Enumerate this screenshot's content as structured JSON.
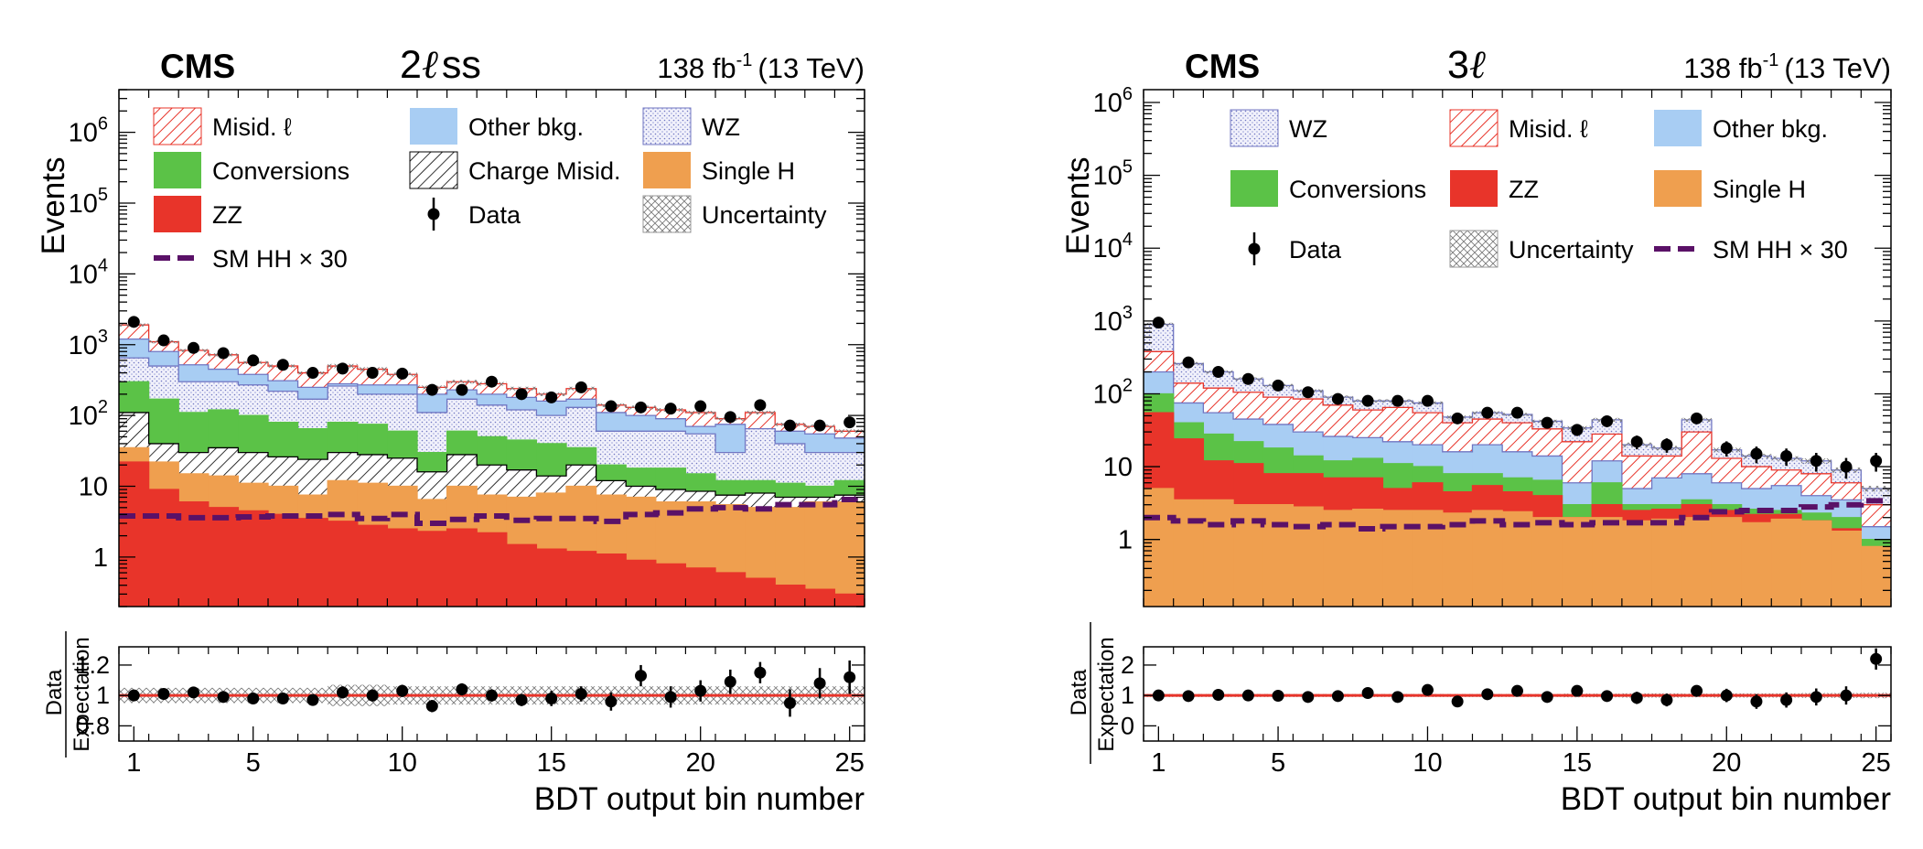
{
  "colors": {
    "misid": "#e8342a",
    "other": "#a8cdf3",
    "wz": "#7076c2",
    "wz_fill": "#f1f1fb",
    "conv": "#5bc247",
    "chargemisid": "#000000",
    "singleh": "#ef9f4f",
    "zz": "#e8342a",
    "hh": "#5a1167",
    "unc": "#888888",
    "ratio_line": "#e8342a"
  },
  "chart_data": [
    {
      "type": "bar",
      "stacked": true,
      "log_scale": true,
      "experiment": "CMS",
      "channel_prefix": "2",
      "channel_ell": "ℓ",
      "channel_suffix": "ss",
      "lumi_text": "138 fb",
      "lumi_sup": "-1",
      "energy_text": "(13 TeV)",
      "ylabel": "Events",
      "xlabel": "BDT output bin number",
      "ratio_ylabel_num": "Data",
      "ratio_ylabel_den": "Expectation",
      "ylim": [
        0.2,
        4000000
      ],
      "xlim": [
        0.5,
        25.5
      ],
      "ratio_ylim": [
        0.7,
        1.32
      ],
      "ratio_ticks": [
        "0.8",
        "1",
        "1.2"
      ],
      "x_ticks": [
        "1",
        "5",
        "10",
        "15",
        "20",
        "25"
      ],
      "y_ticks": [
        {
          "label": "1",
          "exp": ""
        },
        {
          "label": "10",
          "exp": ""
        },
        {
          "label": "10",
          "exp": "2"
        },
        {
          "label": "10",
          "exp": "3"
        },
        {
          "label": "10",
          "exp": "4"
        },
        {
          "label": "10",
          "exp": "5"
        },
        {
          "label": "10",
          "exp": "6"
        }
      ],
      "legend": [
        {
          "label": "Misid. ℓ",
          "key": "misid",
          "style": "hatch-red"
        },
        {
          "label": "Other bkg.",
          "key": "other",
          "style": "fill"
        },
        {
          "label": "WZ",
          "key": "wz",
          "style": "dots-blue"
        },
        {
          "label": "Conversions",
          "key": "conv",
          "style": "fill"
        },
        {
          "label": "Charge Misid.",
          "key": "chargemisid",
          "style": "hatch-black"
        },
        {
          "label": "Single H",
          "key": "singleh",
          "style": "fill"
        },
        {
          "label": "ZZ",
          "key": "zz",
          "style": "fill"
        },
        {
          "label": "Data",
          "key": "data",
          "style": "marker"
        },
        {
          "label": "Uncertainty",
          "key": "unc",
          "style": "crosshatch"
        },
        {
          "label": "SM HH × 30",
          "key": "hh",
          "style": "dash"
        }
      ],
      "stack_order": [
        "zz",
        "singleh",
        "chargemisid",
        "conv",
        "wz",
        "other",
        "misid"
      ],
      "bins": 25,
      "cumulative": {
        "zz": [
          22,
          9,
          6,
          5,
          4.5,
          4,
          3.5,
          3.2,
          2.8,
          2.5,
          2.3,
          2.5,
          2.2,
          1.5,
          1.3,
          1.2,
          1.1,
          0.9,
          0.8,
          0.7,
          0.6,
          0.5,
          0.4,
          0.35,
          0.3
        ],
        "singleh": [
          35,
          22,
          15,
          14,
          11,
          10,
          7.5,
          12,
          11,
          10,
          6.5,
          10,
          7.5,
          7,
          8,
          10,
          7.5,
          7,
          6,
          6,
          5.5,
          5,
          5,
          6,
          6
        ],
        "chargemisid": [
          110,
          40,
          30,
          35,
          30,
          26,
          24,
          30,
          28,
          25,
          16,
          28,
          20,
          17,
          14,
          20,
          12,
          10,
          9,
          8.5,
          7.5,
          8,
          7,
          7,
          7.5
        ],
        "conv": [
          300,
          170,
          110,
          120,
          100,
          80,
          65,
          80,
          75,
          60,
          30,
          60,
          50,
          45,
          40,
          35,
          20,
          18,
          18,
          15,
          12,
          12,
          11,
          10,
          12
        ],
        "wz": [
          650,
          500,
          300,
          300,
          270,
          220,
          170,
          260,
          200,
          200,
          110,
          170,
          140,
          120,
          100,
          130,
          60,
          60,
          60,
          55,
          30,
          65,
          40,
          30,
          30
        ],
        "other": [
          1200,
          800,
          520,
          450,
          380,
          310,
          250,
          280,
          270,
          270,
          200,
          230,
          200,
          180,
          160,
          170,
          110,
          100,
          90,
          70,
          75,
          65,
          60,
          55,
          48
        ],
        "misid": [
          1900,
          1100,
          830,
          720,
          560,
          500,
          400,
          500,
          450,
          380,
          250,
          300,
          280,
          240,
          200,
          240,
          140,
          130,
          120,
          110,
          90,
          110,
          75,
          70,
          60
        ]
      },
      "hh": [
        3.8,
        3.8,
        3.6,
        3.6,
        3.7,
        3.8,
        3.8,
        4.0,
        3.5,
        4.0,
        3.0,
        3.4,
        3.8,
        3.3,
        3.5,
        3.5,
        3.2,
        4.0,
        4.2,
        4.8,
        5.0,
        4.8,
        5.5,
        5.5,
        6.5
      ],
      "data": [
        2100,
        1150,
        900,
        760,
        600,
        520,
        400,
        460,
        400,
        390,
        230,
        230,
        300,
        200,
        180,
        250,
        135,
        130,
        125,
        135,
        95,
        140,
        72,
        72,
        80
      ],
      "unc_rel": [
        0.05,
        0.05,
        0.05,
        0.05,
        0.05,
        0.05,
        0.05,
        0.07,
        0.07,
        0.06,
        0.06,
        0.06,
        0.06,
        0.06,
        0.06,
        0.06,
        0.06,
        0.06,
        0.06,
        0.06,
        0.06,
        0.06,
        0.06,
        0.06,
        0.06
      ],
      "ratio": [
        1.0,
        1.01,
        1.02,
        0.99,
        0.98,
        0.98,
        0.97,
        1.02,
        1.0,
        1.03,
        0.93,
        1.04,
        1.0,
        0.97,
        0.98,
        1.01,
        0.96,
        1.13,
        0.99,
        1.03,
        1.09,
        1.15,
        0.95,
        1.08,
        1.12
      ],
      "ratio_err": [
        0.02,
        0.02,
        0.02,
        0.02,
        0.02,
        0.03,
        0.03,
        0.04,
        0.04,
        0.04,
        0.04,
        0.04,
        0.04,
        0.04,
        0.05,
        0.05,
        0.06,
        0.07,
        0.07,
        0.07,
        0.08,
        0.07,
        0.09,
        0.1,
        0.11
      ]
    },
    {
      "type": "bar",
      "stacked": true,
      "log_scale": true,
      "experiment": "CMS",
      "channel_prefix": "3",
      "channel_ell": "ℓ",
      "channel_suffix": "",
      "lumi_text": "138 fb",
      "lumi_sup": "-1",
      "energy_text": "(13 TeV)",
      "ylabel": "Events",
      "xlabel": "BDT output bin number",
      "ratio_ylabel_num": "Data",
      "ratio_ylabel_den": "Expectation",
      "ylim": [
        0.12,
        1500000
      ],
      "xlim": [
        0.5,
        25.5
      ],
      "ratio_ylim": [
        -0.5,
        2.6
      ],
      "ratio_ticks": [
        "0",
        "1",
        "2"
      ],
      "x_ticks": [
        "1",
        "5",
        "10",
        "15",
        "20",
        "25"
      ],
      "y_ticks": [
        {
          "label": "1",
          "exp": ""
        },
        {
          "label": "10",
          "exp": ""
        },
        {
          "label": "10",
          "exp": "2"
        },
        {
          "label": "10",
          "exp": "3"
        },
        {
          "label": "10",
          "exp": "4"
        },
        {
          "label": "10",
          "exp": "5"
        },
        {
          "label": "10",
          "exp": "6"
        }
      ],
      "legend": [
        {
          "label": "WZ",
          "key": "wz",
          "style": "dots-blue"
        },
        {
          "label": "Misid. ℓ",
          "key": "misid",
          "style": "hatch-red"
        },
        {
          "label": "Other bkg.",
          "key": "other",
          "style": "fill"
        },
        {
          "label": "Conversions",
          "key": "conv",
          "style": "fill"
        },
        {
          "label": "ZZ",
          "key": "zz",
          "style": "fill"
        },
        {
          "label": "Single H",
          "key": "singleh",
          "style": "fill"
        },
        {
          "label": "Data",
          "key": "data",
          "style": "marker"
        },
        {
          "label": "Uncertainty",
          "key": "unc",
          "style": "crosshatch"
        },
        {
          "label": "SM HH × 30",
          "key": "hh",
          "style": "dash"
        }
      ],
      "stack_order": [
        "singleh",
        "zz",
        "conv",
        "other",
        "misid",
        "wz"
      ],
      "bins": 25,
      "cumulative": {
        "singleh": [
          5,
          3.5,
          3.5,
          3,
          3,
          2.8,
          2.5,
          2.6,
          2.5,
          2.5,
          2.3,
          2.5,
          2.4,
          2.0,
          2.0,
          2.0,
          1.8,
          1.9,
          2.0,
          2.0,
          1.7,
          1.9,
          1.8,
          1.3,
          0.8
        ],
        "zz": [
          55,
          24,
          12,
          11,
          8,
          8,
          7,
          7,
          5,
          6,
          4.5,
          5.5,
          4.5,
          4,
          2,
          3,
          2.5,
          2.6,
          3,
          2.5,
          2.2,
          2.2,
          1.8,
          1.4,
          0.7
        ],
        "conv": [
          100,
          40,
          28,
          22,
          18,
          14,
          12,
          13,
          11,
          10,
          8,
          8,
          7,
          6.5,
          3,
          6,
          3,
          3,
          3.5,
          3,
          2.6,
          2.5,
          2.3,
          2.0,
          1.0
        ],
        "other": [
          200,
          75,
          55,
          45,
          38,
          30,
          26,
          25,
          22,
          20,
          16,
          20,
          16,
          14,
          6,
          12,
          5,
          7,
          8,
          6,
          5,
          5.5,
          4,
          3.5,
          1.5
        ],
        "misid": [
          380,
          140,
          120,
          105,
          90,
          85,
          70,
          60,
          65,
          55,
          40,
          45,
          40,
          33,
          22,
          28,
          14,
          14,
          30,
          13,
          10,
          9,
          8,
          6,
          3
        ],
        "wz": [
          900,
          260,
          200,
          160,
          130,
          110,
          90,
          80,
          80,
          75,
          48,
          55,
          52,
          42,
          34,
          44,
          20,
          18,
          44,
          17,
          14,
          13,
          12,
          9,
          5
        ]
      },
      "hh": [
        2.0,
        1.8,
        1.6,
        1.8,
        1.6,
        1.5,
        1.6,
        1.4,
        1.5,
        1.5,
        1.6,
        1.8,
        1.6,
        1.7,
        1.6,
        1.7,
        1.7,
        1.7,
        2.0,
        2.4,
        2.5,
        2.5,
        2.8,
        3.0,
        3.4
      ],
      "data": [
        950,
        270,
        200,
        160,
        130,
        105,
        85,
        80,
        80,
        80,
        46,
        55,
        55,
        40,
        32,
        42,
        22,
        20,
        46,
        18,
        15,
        14,
        12,
        10,
        12
      ],
      "unc_rel": [
        0.05,
        0.05,
        0.05,
        0.05,
        0.05,
        0.05,
        0.05,
        0.05,
        0.05,
        0.05,
        0.05,
        0.05,
        0.05,
        0.05,
        0.06,
        0.06,
        0.07,
        0.07,
        0.06,
        0.07,
        0.07,
        0.07,
        0.08,
        0.08,
        0.09
      ],
      "ratio": [
        1.0,
        0.98,
        1.02,
        1.0,
        0.99,
        0.95,
        0.98,
        1.08,
        0.95,
        1.18,
        0.8,
        1.04,
        1.15,
        0.95,
        1.15,
        0.98,
        0.92,
        0.85,
        1.15,
        1.0,
        0.8,
        0.85,
        0.95,
        1.0,
        2.2
      ],
      "ratio_err": [
        0.04,
        0.05,
        0.06,
        0.06,
        0.07,
        0.08,
        0.08,
        0.08,
        0.09,
        0.1,
        0.12,
        0.12,
        0.12,
        0.13,
        0.16,
        0.13,
        0.2,
        0.21,
        0.15,
        0.22,
        0.24,
        0.25,
        0.28,
        0.3,
        0.35
      ]
    }
  ]
}
